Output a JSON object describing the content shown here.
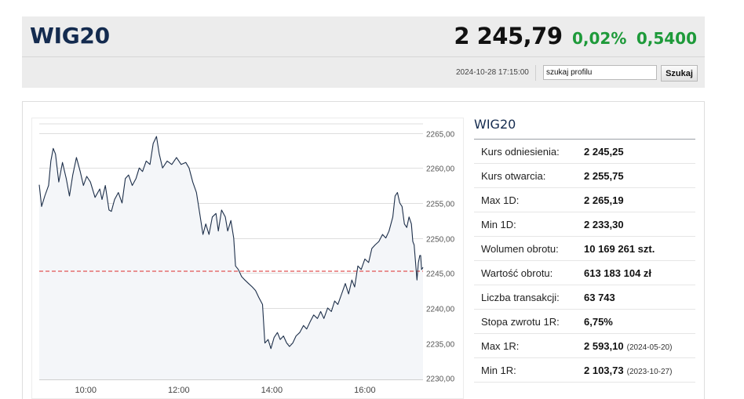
{
  "header": {
    "title": "WIG20",
    "price": "2 245,79",
    "change_pct": "0,02%",
    "change_abs": "0,5400",
    "timestamp": "2024-10-28 17:15:00",
    "search_value": "szukaj profilu",
    "search_button": "Szukaj",
    "change_color": "#1e9a3a",
    "title_color": "#142b4f"
  },
  "stats": {
    "title": "WIG20",
    "rows": [
      {
        "label": "Kurs odniesienia:",
        "value": "2 245,25",
        "note": ""
      },
      {
        "label": "Kurs otwarcia:",
        "value": "2 255,75",
        "note": ""
      },
      {
        "label": "Max 1D:",
        "value": "2 265,19",
        "note": ""
      },
      {
        "label": "Min 1D:",
        "value": "2 233,30",
        "note": ""
      },
      {
        "label": "Wolumen obrotu:",
        "value": "10 169 261 szt.",
        "note": ""
      },
      {
        "label": "Wartość obrotu:",
        "value": "613 183 104 zł",
        "note": ""
      },
      {
        "label": "Liczba transakcji:",
        "value": "63 743",
        "note": ""
      },
      {
        "label": "Stopa zwrotu 1R:",
        "value": "6,75%",
        "note": ""
      },
      {
        "label": "Max 1R:",
        "value": "2 593,10",
        "note": "(2024-05-20)"
      },
      {
        "label": "Min 1R:",
        "value": "2 103,73",
        "note": "(2023-10-27)"
      }
    ]
  },
  "chart_data": {
    "type": "line",
    "xlabel": "",
    "ylabel": "",
    "x_ticks": [
      {
        "value": 10.0,
        "label": "10:00"
      },
      {
        "value": 12.0,
        "label": "12:00"
      },
      {
        "value": 14.0,
        "label": "14:00"
      },
      {
        "value": 16.0,
        "label": "16:00"
      }
    ],
    "y_ticks": [
      {
        "value": 2230,
        "label": "2230,00"
      },
      {
        "value": 2235,
        "label": "2235,00"
      },
      {
        "value": 2240,
        "label": "2240,00"
      },
      {
        "value": 2245,
        "label": "2245,00"
      },
      {
        "value": 2250,
        "label": "2250,00"
      },
      {
        "value": 2255,
        "label": "2255,00"
      },
      {
        "value": 2260,
        "label": "2260,00"
      },
      {
        "value": 2265,
        "label": "2265,00"
      }
    ],
    "xlim": [
      9.0,
      17.25
    ],
    "ylim": [
      2229.8,
      2267.2
    ],
    "reference_value": 2245.25,
    "reference_color": "#e05555",
    "line_color": "#1d2f4a",
    "fill_color": "#f4f6f9",
    "grid": true,
    "series": [
      {
        "name": "",
        "points": [
          [
            9.0,
            2257.6
          ],
          [
            9.05,
            2254.5
          ],
          [
            9.12,
            2256.0
          ],
          [
            9.2,
            2257.5
          ],
          [
            9.25,
            2261.0
          ],
          [
            9.3,
            2262.8
          ],
          [
            9.35,
            2262.0
          ],
          [
            9.42,
            2258.0
          ],
          [
            9.5,
            2260.8
          ],
          [
            9.58,
            2258.5
          ],
          [
            9.65,
            2256.0
          ],
          [
            9.72,
            2259.0
          ],
          [
            9.8,
            2261.5
          ],
          [
            9.88,
            2259.5
          ],
          [
            9.95,
            2257.5
          ],
          [
            10.02,
            2258.8
          ],
          [
            10.1,
            2258.0
          ],
          [
            10.2,
            2255.8
          ],
          [
            10.3,
            2257.0
          ],
          [
            10.35,
            2255.5
          ],
          [
            10.42,
            2257.5
          ],
          [
            10.5,
            2254.0
          ],
          [
            10.55,
            2253.8
          ],
          [
            10.62,
            2255.5
          ],
          [
            10.7,
            2256.5
          ],
          [
            10.78,
            2255.0
          ],
          [
            10.85,
            2258.5
          ],
          [
            10.92,
            2259.0
          ],
          [
            11.0,
            2257.5
          ],
          [
            11.08,
            2258.5
          ],
          [
            11.15,
            2260.0
          ],
          [
            11.22,
            2259.5
          ],
          [
            11.3,
            2261.0
          ],
          [
            11.38,
            2260.5
          ],
          [
            11.45,
            2263.5
          ],
          [
            11.52,
            2264.5
          ],
          [
            11.58,
            2262.0
          ],
          [
            11.65,
            2260.0
          ],
          [
            11.75,
            2261.0
          ],
          [
            11.85,
            2260.5
          ],
          [
            11.95,
            2261.5
          ],
          [
            12.05,
            2260.5
          ],
          [
            12.15,
            2260.8
          ],
          [
            12.22,
            2260.0
          ],
          [
            12.3,
            2258.0
          ],
          [
            12.38,
            2256.5
          ],
          [
            12.45,
            2253.5
          ],
          [
            12.52,
            2250.5
          ],
          [
            12.58,
            2252.0
          ],
          [
            12.65,
            2250.5
          ],
          [
            12.72,
            2253.0
          ],
          [
            12.8,
            2253.5
          ],
          [
            12.85,
            2251.0
          ],
          [
            12.92,
            2254.0
          ],
          [
            13.0,
            2253.0
          ],
          [
            13.05,
            2251.0
          ],
          [
            13.12,
            2252.5
          ],
          [
            13.18,
            2250.0
          ],
          [
            13.22,
            2246.0
          ],
          [
            13.28,
            2245.5
          ],
          [
            13.35,
            2244.5
          ],
          [
            13.42,
            2244.0
          ],
          [
            13.5,
            2243.5
          ],
          [
            13.58,
            2243.0
          ],
          [
            13.65,
            2242.5
          ],
          [
            13.72,
            2241.5
          ],
          [
            13.8,
            2240.5
          ],
          [
            13.85,
            2235.0
          ],
          [
            13.92,
            2235.5
          ],
          [
            13.98,
            2234.2
          ],
          [
            14.05,
            2235.8
          ],
          [
            14.12,
            2236.5
          ],
          [
            14.18,
            2235.5
          ],
          [
            14.25,
            2236.0
          ],
          [
            14.32,
            2235.0
          ],
          [
            14.38,
            2234.5
          ],
          [
            14.45,
            2235.0
          ],
          [
            14.52,
            2236.0
          ],
          [
            14.6,
            2236.5
          ],
          [
            14.68,
            2237.5
          ],
          [
            14.75,
            2237.0
          ],
          [
            14.82,
            2238.0
          ],
          [
            14.9,
            2239.0
          ],
          [
            14.98,
            2238.5
          ],
          [
            15.05,
            2239.5
          ],
          [
            15.12,
            2238.5
          ],
          [
            15.2,
            2240.0
          ],
          [
            15.28,
            2239.5
          ],
          [
            15.35,
            2241.0
          ],
          [
            15.42,
            2240.5
          ],
          [
            15.5,
            2242.0
          ],
          [
            15.58,
            2243.5
          ],
          [
            15.65,
            2242.0
          ],
          [
            15.72,
            2244.0
          ],
          [
            15.78,
            2243.0
          ],
          [
            15.85,
            2246.0
          ],
          [
            15.92,
            2245.5
          ],
          [
            16.0,
            2247.0
          ],
          [
            16.08,
            2246.5
          ],
          [
            16.15,
            2248.5
          ],
          [
            16.22,
            2249.0
          ],
          [
            16.3,
            2249.5
          ],
          [
            16.38,
            2250.5
          ],
          [
            16.45,
            2250.0
          ],
          [
            16.52,
            2251.0
          ],
          [
            16.6,
            2253.0
          ],
          [
            16.65,
            2256.0
          ],
          [
            16.7,
            2256.5
          ],
          [
            16.75,
            2255.0
          ],
          [
            16.8,
            2254.5
          ],
          [
            16.85,
            2252.0
          ],
          [
            16.9,
            2251.5
          ],
          [
            16.95,
            2253.0
          ],
          [
            17.0,
            2252.0
          ],
          [
            17.03,
            2249.5
          ],
          [
            17.06,
            2249.0
          ],
          [
            17.09,
            2246.5
          ],
          [
            17.12,
            2244.0
          ],
          [
            17.15,
            2246.5
          ],
          [
            17.18,
            2247.5
          ],
          [
            17.2,
            2247.5
          ],
          [
            17.22,
            2245.5
          ],
          [
            17.25,
            2245.8
          ]
        ]
      }
    ]
  }
}
